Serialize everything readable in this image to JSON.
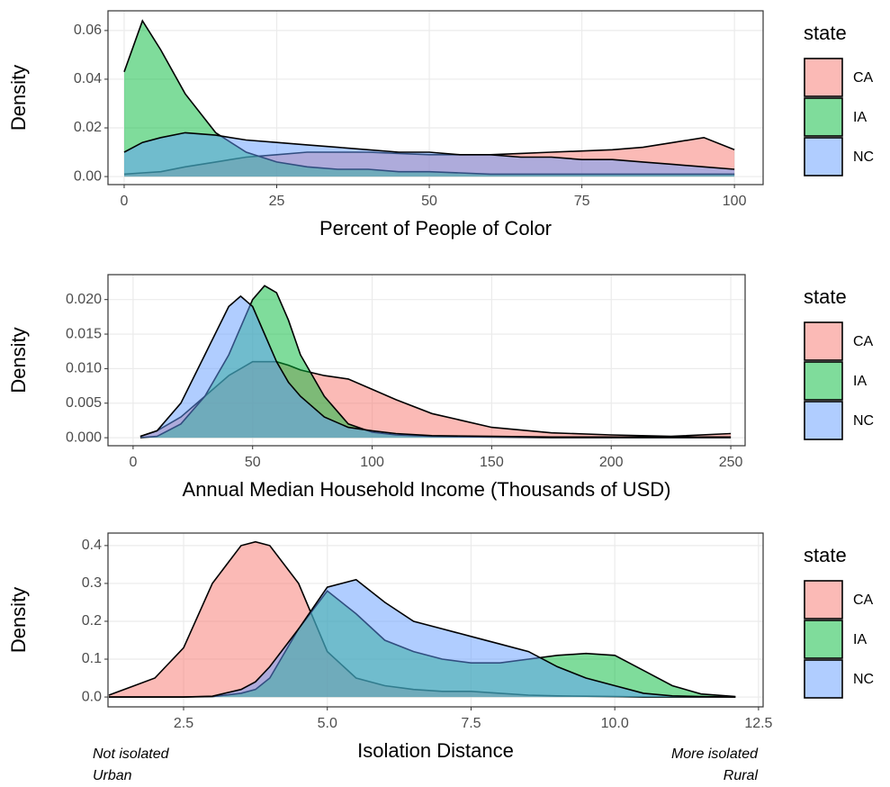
{
  "chart_data": [
    {
      "type": "density",
      "x_label": "Percent of People of Color",
      "y_label": "Density",
      "legend_title": "state",
      "x": [
        0,
        3,
        6,
        10,
        15,
        20,
        25,
        30,
        35,
        40,
        45,
        50,
        55,
        60,
        65,
        70,
        75,
        80,
        85,
        90,
        95,
        100
      ],
      "series": [
        {
          "name": "CA",
          "color": "#f8766d",
          "values": [
            0.001,
            0.0015,
            0.002,
            0.004,
            0.006,
            0.008,
            0.009,
            0.01,
            0.01,
            0.01,
            0.0095,
            0.009,
            0.009,
            0.009,
            0.0095,
            0.01,
            0.0105,
            0.011,
            0.012,
            0.014,
            0.016,
            0.011
          ]
        },
        {
          "name": "IA",
          "color": "#00ba38",
          "values": [
            0.043,
            0.064,
            0.052,
            0.034,
            0.018,
            0.01,
            0.006,
            0.004,
            0.003,
            0.003,
            0.002,
            0.002,
            0.0015,
            0.001,
            0.001,
            0.001,
            0.001,
            0.001,
            0.001,
            0.001,
            0.001,
            0.001
          ]
        },
        {
          "name": "NC",
          "color": "#619cff",
          "values": [
            0.01,
            0.014,
            0.016,
            0.018,
            0.017,
            0.015,
            0.014,
            0.013,
            0.012,
            0.011,
            0.01,
            0.01,
            0.009,
            0.009,
            0.008,
            0.008,
            0.007,
            0.007,
            0.006,
            0.005,
            0.004,
            0.003
          ]
        }
      ],
      "xlim": [
        -2.65,
        104.7
      ],
      "ylim": [
        -0.0033,
        0.0681
      ],
      "xticks": [
        0,
        25,
        50,
        75,
        100
      ],
      "yticks": [
        {
          "value": 0,
          "label": "0.00"
        },
        0.02,
        0.04,
        0.06
      ],
      "grid": true
    },
    {
      "type": "density",
      "x_label": "Annual Median Household Income (Thousands of USD)",
      "y_label": "Density",
      "legend_title": "state",
      "x": [
        3,
        10,
        20,
        30,
        40,
        45,
        50,
        55,
        60,
        65,
        70,
        80,
        90,
        100,
        110,
        125,
        150,
        175,
        200,
        225,
        250
      ],
      "series": [
        {
          "name": "CA",
          "color": "#f8766d",
          "values": [
            0.0002,
            0.001,
            0.003,
            0.006,
            0.009,
            0.01,
            0.011,
            0.011,
            0.011,
            0.0105,
            0.0098,
            0.009,
            0.0085,
            0.007,
            0.0055,
            0.0035,
            0.0015,
            0.0007,
            0.0004,
            0.0002,
            0.0006
          ]
        },
        {
          "name": "IA",
          "color": "#00ba38",
          "values": [
            0,
            0.0002,
            0.002,
            0.006,
            0.012,
            0.016,
            0.02,
            0.022,
            0.021,
            0.017,
            0.012,
            0.006,
            0.002,
            0.0008,
            0.0004,
            0.0002,
            0.0001,
            0,
            0,
            0,
            0
          ]
        },
        {
          "name": "NC",
          "color": "#619cff",
          "values": [
            0.0002,
            0.001,
            0.005,
            0.012,
            0.019,
            0.0205,
            0.019,
            0.015,
            0.011,
            0.008,
            0.006,
            0.003,
            0.0015,
            0.001,
            0.0006,
            0.0003,
            0.0002,
            0.0001,
            0.0001,
            0.0001,
            0.0001
          ]
        }
      ],
      "xlim": [
        -10.5,
        256
      ],
      "ylim": [
        -0.00116,
        0.02361
      ],
      "xticks": [
        0,
        50,
        100,
        150,
        200,
        250
      ],
      "yticks": [
        {
          "value": 0,
          "label": "0.000"
        },
        0.005,
        {
          "value": 0.01,
          "label": "0.010"
        },
        0.015,
        {
          "value": 0.02,
          "label": "0.020"
        }
      ],
      "grid": true
    },
    {
      "type": "density",
      "x_label": "Isolation Distance",
      "y_label": "Density",
      "legend_title": "state",
      "annotations": [
        "Not isolated",
        "Urban",
        "More isolated",
        "Rural"
      ],
      "x": [
        1.2,
        2,
        2.5,
        3,
        3.5,
        3.75,
        4,
        4.5,
        5,
        5.5,
        6,
        6.5,
        7,
        7.5,
        8,
        8.5,
        9,
        9.5,
        10,
        10.5,
        11,
        11.5,
        12.1
      ],
      "series": [
        {
          "name": "CA",
          "color": "#f8766d",
          "values": [
            0.005,
            0.05,
            0.13,
            0.3,
            0.4,
            0.41,
            0.4,
            0.3,
            0.12,
            0.05,
            0.03,
            0.02,
            0.015,
            0.015,
            0.01,
            0.005,
            0.003,
            0.002,
            0.001,
            0,
            0,
            0,
            0
          ]
        },
        {
          "name": "IA",
          "color": "#00ba38",
          "values": [
            0,
            0,
            0,
            0.001,
            0.01,
            0.02,
            0.05,
            0.18,
            0.28,
            0.22,
            0.15,
            0.12,
            0.1,
            0.09,
            0.09,
            0.1,
            0.11,
            0.115,
            0.11,
            0.07,
            0.03,
            0.008,
            0.001
          ]
        },
        {
          "name": "NC",
          "color": "#619cff",
          "values": [
            0,
            0,
            0,
            0.002,
            0.02,
            0.04,
            0.08,
            0.18,
            0.29,
            0.31,
            0.25,
            0.2,
            0.18,
            0.16,
            0.14,
            0.12,
            0.08,
            0.05,
            0.03,
            0.01,
            0.003,
            0.001,
            0
          ]
        }
      ],
      "xlim": [
        1.185,
        12.58
      ],
      "ylim": [
        -0.026,
        0.433
      ],
      "xticks": [
        2.5,
        {
          "value": 5,
          "label": "5.0"
        },
        7.5,
        {
          "value": 10,
          "label": "10.0"
        },
        12.5
      ],
      "yticks": [
        {
          "value": 0,
          "label": "0.0"
        },
        0.1,
        0.2,
        0.3,
        0.4
      ],
      "grid": true
    }
  ]
}
